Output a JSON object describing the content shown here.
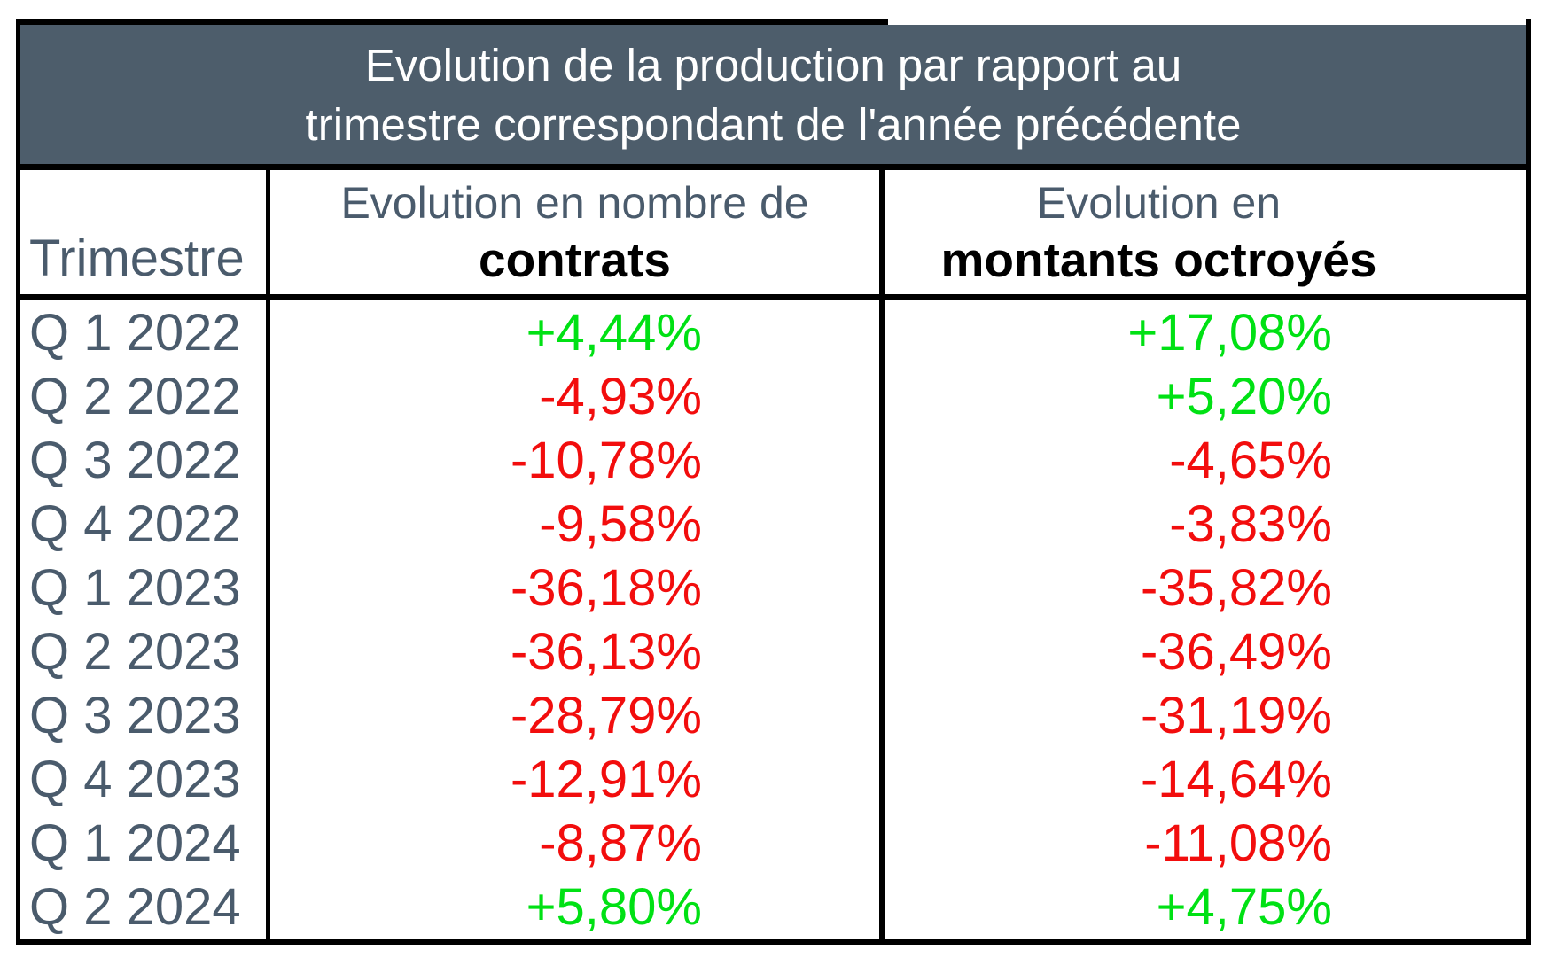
{
  "table": {
    "title_line1": "Evolution de la production par rapport au",
    "title_line2": "trimestre correspondant de l'année précédente",
    "columns": {
      "quarter": "Trimestre",
      "contracts_line1": "Evolution en nombre de",
      "contracts_line2": "contrats",
      "amounts_line1": "Evolution en",
      "amounts_line2": "montants octroyés"
    },
    "rows": [
      {
        "quarter": "Q 1 2022",
        "contracts": "+4,44%",
        "amounts": "+17,08%"
      },
      {
        "quarter": "Q 2 2022",
        "contracts": "-4,93%",
        "amounts": "+5,20%"
      },
      {
        "quarter": "Q 3 2022",
        "contracts": "-10,78%",
        "amounts": "-4,65%"
      },
      {
        "quarter": "Q 4 2022",
        "contracts": "-9,58%",
        "amounts": "-3,83%"
      },
      {
        "quarter": "Q 1 2023",
        "contracts": "-36,18%",
        "amounts": "-35,82%"
      },
      {
        "quarter": "Q 2 2023",
        "contracts": "-36,13%",
        "amounts": "-36,49%"
      },
      {
        "quarter": "Q 3 2023",
        "contracts": "-28,79%",
        "amounts": "-31,19%"
      },
      {
        "quarter": "Q 4 2023",
        "contracts": "-12,91%",
        "amounts": "-14,64%"
      },
      {
        "quarter": "Q 1 2024",
        "contracts": "-8,87%",
        "amounts": "-11,08%"
      },
      {
        "quarter": "Q 2 2024",
        "contracts": "+5,80%",
        "amounts": "+4,75%"
      }
    ]
  },
  "colors": {
    "header_bg": "#4d5d6b",
    "title_text": "#ffffff",
    "slate_text": "#4a5b6c",
    "positive": "#00e114",
    "negative": "#f20d0d",
    "border": "#000000"
  },
  "chart_data": {
    "type": "table",
    "title": "Evolution de la production par rapport au trimestre correspondant de l'année précédente",
    "columns": [
      "Trimestre",
      "Evolution en nombre de contrats",
      "Evolution en montants octroyés"
    ],
    "categories": [
      "Q 1 2022",
      "Q 2 2022",
      "Q 3 2022",
      "Q 4 2022",
      "Q 1 2023",
      "Q 2 2023",
      "Q 3 2023",
      "Q 4 2023",
      "Q 1 2024",
      "Q 2 2024"
    ],
    "series": [
      {
        "name": "Evolution en nombre de contrats (%)",
        "values": [
          4.44,
          -4.93,
          -10.78,
          -9.58,
          -36.18,
          -36.13,
          -28.79,
          -12.91,
          -8.87,
          5.8
        ]
      },
      {
        "name": "Evolution en montants octroyés (%)",
        "values": [
          17.08,
          5.2,
          -4.65,
          -3.83,
          -35.82,
          -36.49,
          -31.19,
          -14.64,
          -11.08,
          4.75
        ]
      }
    ],
    "number_format": "signed percentage with French decimal comma",
    "color_coding": {
      "positive_values": "bright green",
      "negative_values": "red"
    },
    "legend_position": "none",
    "grid": "table borders"
  }
}
